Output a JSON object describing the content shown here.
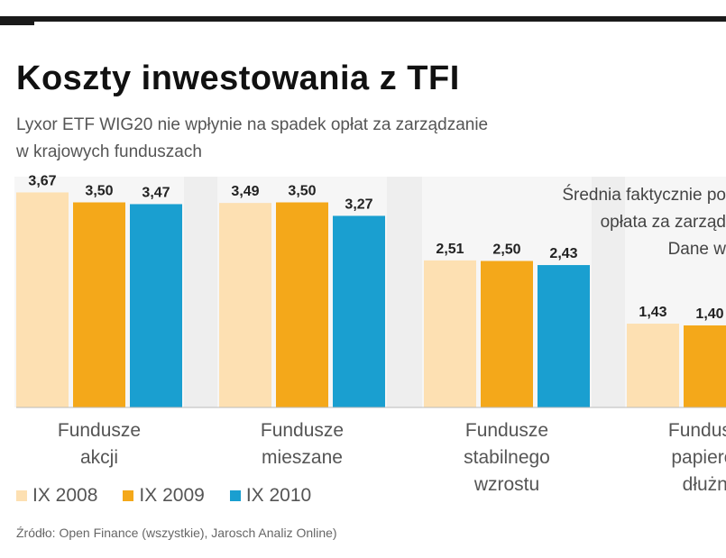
{
  "header": {
    "title": "Koszty inwestowania z TFI",
    "subtitle": "Lyxor ETF WIG20 nie wpłynie na spadek opłat za zarządzanie\nw krajowych funduszach"
  },
  "note": "Średnia faktycznie po\nopłata za zarząd\nDane w",
  "source": "Źródło: Open Finance (wszystkie), Jarosch Analiz Online)",
  "colors": {
    "ix2008": "#fde0b2",
    "ix2009": "#f4a81a",
    "ix2010": "#1a9fd0",
    "plot_bg": "#eeeeee"
  },
  "chart_data": {
    "type": "bar",
    "categories": [
      "Fundusze\nakcji",
      "Fundusze\nmieszane",
      "Fundusze\nstabilnego\nwzrostu",
      "Fundusze\npapierów\ndłużny"
    ],
    "series": [
      {
        "name": "IX 2008",
        "values": [
          3.67,
          3.49,
          2.51,
          1.43
        ],
        "labels": [
          "3,67",
          "3,49",
          "2,51",
          "1,43"
        ]
      },
      {
        "name": "IX 2009",
        "values": [
          3.5,
          3.5,
          2.5,
          1.4
        ],
        "labels": [
          "3,50",
          "3,50",
          "2,50",
          "1,40"
        ]
      },
      {
        "name": "IX 2010",
        "values": [
          3.47,
          3.27,
          2.43,
          null
        ],
        "labels": [
          "3,47",
          "3,27",
          "2,43",
          ""
        ]
      }
    ],
    "ylim": [
      0,
      3.8
    ],
    "grid": false,
    "legend": "bottom-left"
  }
}
